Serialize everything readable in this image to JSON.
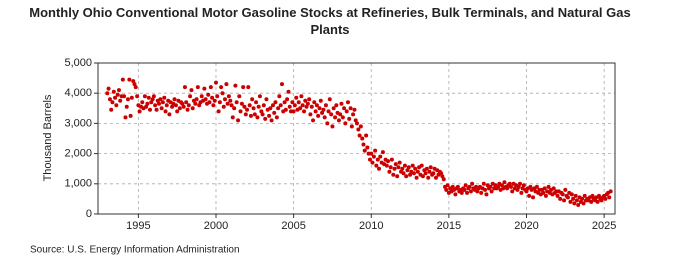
{
  "chart_data": {
    "type": "scatter",
    "title": "Monthly Ohio Conventional Motor Gasoline Stocks at Refineries, Bulk Terminals, and Natural Gas Plants",
    "y_label": "Thousand Barrels",
    "source": "Source: U.S. Energy Information Administration",
    "xlim": [
      1992.4,
      2025.7
    ],
    "xticks": [
      1995,
      2000,
      2005,
      2010,
      2015,
      2020,
      2025
    ],
    "ylim": [
      0,
      5000
    ],
    "yticks": [
      {
        "value": 0,
        "label": "0"
      },
      {
        "value": 1000,
        "label": "1,000"
      },
      {
        "value": 2000,
        "label": "2,000"
      },
      {
        "value": 3000,
        "label": "3,000"
      },
      {
        "value": 4000,
        "label": "4,000"
      },
      {
        "value": 5000,
        "label": "5,000"
      }
    ],
    "grid": true,
    "color": "#cc0000",
    "x": [
      1993.0,
      1993.08,
      1993.17,
      1993.25,
      1993.33,
      1993.42,
      1993.5,
      1993.58,
      1993.67,
      1993.75,
      1993.83,
      1993.92,
      1994.0,
      1994.08,
      1994.17,
      1994.25,
      1994.33,
      1994.42,
      1994.5,
      1994.58,
      1994.67,
      1994.75,
      1994.83,
      1994.92,
      1995.0,
      1995.08,
      1995.17,
      1995.25,
      1995.33,
      1995.42,
      1995.5,
      1995.58,
      1995.67,
      1995.75,
      1995.83,
      1995.92,
      1996.0,
      1996.08,
      1996.17,
      1996.25,
      1996.33,
      1996.42,
      1996.5,
      1996.58,
      1996.67,
      1996.75,
      1996.83,
      1996.92,
      1997.0,
      1997.08,
      1997.17,
      1997.25,
      1997.33,
      1997.42,
      1997.5,
      1997.58,
      1997.67,
      1997.75,
      1997.83,
      1997.92,
      1998.0,
      1998.08,
      1998.17,
      1998.25,
      1998.33,
      1998.42,
      1998.5,
      1998.58,
      1998.67,
      1998.75,
      1998.83,
      1998.92,
      1999.0,
      1999.08,
      1999.17,
      1999.25,
      1999.33,
      1999.42,
      1999.5,
      1999.58,
      1999.67,
      1999.75,
      1999.83,
      1999.92,
      2000.0,
      2000.08,
      2000.17,
      2000.25,
      2000.33,
      2000.42,
      2000.5,
      2000.58,
      2000.67,
      2000.75,
      2000.83,
      2000.92,
      2001.0,
      2001.08,
      2001.17,
      2001.25,
      2001.33,
      2001.42,
      2001.5,
      2001.58,
      2001.67,
      2001.75,
      2001.83,
      2001.92,
      2002.0,
      2002.08,
      2002.17,
      2002.25,
      2002.33,
      2002.42,
      2002.5,
      2002.58,
      2002.67,
      2002.75,
      2002.83,
      2002.92,
      2003.0,
      2003.08,
      2003.17,
      2003.25,
      2003.33,
      2003.42,
      2003.5,
      2003.58,
      2003.67,
      2003.75,
      2003.83,
      2003.92,
      2004.0,
      2004.08,
      2004.17,
      2004.25,
      2004.33,
      2004.42,
      2004.5,
      2004.58,
      2004.67,
      2004.75,
      2004.83,
      2004.92,
      2005.0,
      2005.08,
      2005.17,
      2005.25,
      2005.33,
      2005.42,
      2005.5,
      2005.58,
      2005.67,
      2005.75,
      2005.83,
      2005.92,
      2006.0,
      2006.08,
      2006.17,
      2006.25,
      2006.33,
      2006.42,
      2006.5,
      2006.58,
      2006.67,
      2006.75,
      2006.83,
      2006.92,
      2007.0,
      2007.08,
      2007.17,
      2007.25,
      2007.33,
      2007.42,
      2007.5,
      2007.58,
      2007.67,
      2007.75,
      2007.83,
      2007.92,
      2008.0,
      2008.08,
      2008.17,
      2008.25,
      2008.33,
      2008.42,
      2008.5,
      2008.58,
      2008.67,
      2008.75,
      2008.83,
      2008.92,
      2009.0,
      2009.08,
      2009.17,
      2009.25,
      2009.33,
      2009.42,
      2009.5,
      2009.58,
      2009.67,
      2009.75,
      2009.83,
      2009.92,
      2010.0,
      2010.08,
      2010.17,
      2010.25,
      2010.33,
      2010.42,
      2010.5,
      2010.58,
      2010.67,
      2010.75,
      2010.83,
      2010.92,
      2011.0,
      2011.08,
      2011.17,
      2011.25,
      2011.33,
      2011.42,
      2011.5,
      2011.58,
      2011.67,
      2011.75,
      2011.83,
      2011.92,
      2012.0,
      2012.08,
      2012.17,
      2012.25,
      2012.33,
      2012.42,
      2012.5,
      2012.58,
      2012.67,
      2012.75,
      2012.83,
      2012.92,
      2013.0,
      2013.08,
      2013.17,
      2013.25,
      2013.33,
      2013.42,
      2013.5,
      2013.58,
      2013.67,
      2013.75,
      2013.83,
      2013.92,
      2014.0,
      2014.08,
      2014.17,
      2014.25,
      2014.33,
      2014.42,
      2014.5,
      2014.58,
      2014.67,
      2014.75,
      2014.83,
      2014.92,
      2015.0,
      2015.08,
      2015.17,
      2015.25,
      2015.33,
      2015.42,
      2015.5,
      2015.58,
      2015.67,
      2015.75,
      2015.83,
      2015.92,
      2016.0,
      2016.08,
      2016.17,
      2016.25,
      2016.33,
      2016.42,
      2016.5,
      2016.58,
      2016.67,
      2016.75,
      2016.83,
      2016.92,
      2017.0,
      2017.08,
      2017.17,
      2017.25,
      2017.33,
      2017.42,
      2017.5,
      2017.58,
      2017.67,
      2017.75,
      2017.83,
      2017.92,
      2018.0,
      2018.08,
      2018.17,
      2018.25,
      2018.33,
      2018.42,
      2018.5,
      2018.58,
      2018.67,
      2018.75,
      2018.83,
      2018.92,
      2019.0,
      2019.08,
      2019.17,
      2019.25,
      2019.33,
      2019.42,
      2019.5,
      2019.58,
      2019.67,
      2019.75,
      2019.83,
      2019.92,
      2020.0,
      2020.08,
      2020.17,
      2020.25,
      2020.33,
      2020.42,
      2020.5,
      2020.58,
      2020.67,
      2020.75,
      2020.83,
      2020.92,
      2021.0,
      2021.08,
      2021.17,
      2021.25,
      2021.33,
      2021.42,
      2021.5,
      2021.58,
      2021.67,
      2021.75,
      2021.83,
      2021.92,
      2022.0,
      2022.08,
      2022.17,
      2022.25,
      2022.33,
      2022.42,
      2022.5,
      2022.58,
      2022.67,
      2022.75,
      2022.83,
      2022.92,
      2023.0,
      2023.08,
      2023.17,
      2023.25,
      2023.33,
      2023.42,
      2023.5,
      2023.58,
      2023.67,
      2023.75,
      2023.83,
      2023.92,
      2024.0,
      2024.08,
      2024.17,
      2024.25,
      2024.33,
      2024.42,
      2024.5,
      2024.58,
      2024.67,
      2024.75,
      2024.83,
      2024.92,
      2025.0,
      2025.08,
      2025.17,
      2025.25,
      2025.33,
      2025.42
    ],
    "values": [
      4000,
      4150,
      3800,
      3450,
      3700,
      4050,
      3850,
      3600,
      3950,
      4100,
      3750,
      3900,
      4450,
      3900,
      3200,
      3550,
      3800,
      4450,
      3250,
      3850,
      4400,
      4300,
      4200,
      3900,
      3600,
      3400,
      3550,
      3700,
      3500,
      3900,
      3550,
      3650,
      3850,
      3450,
      3700,
      3800,
      3900,
      3600,
      3450,
      3750,
      3650,
      3800,
      3500,
      3700,
      3850,
      3400,
      3600,
      3750,
      3300,
      3700,
      3550,
      3650,
      3800,
      3600,
      3400,
      3750,
      3500,
      3700,
      3650,
      3550,
      4200,
      3700,
      3450,
      3600,
      3900,
      4100,
      3500,
      3750,
      3650,
      3800,
      4200,
      3600,
      3700,
      3900,
      3750,
      4150,
      3800,
      3650,
      3950,
      3700,
      4200,
      3850,
      3600,
      3750,
      4350,
      3900,
      3400,
      3700,
      4200,
      4000,
      3550,
      3800,
      4300,
      3650,
      3900,
      3750,
      3600,
      3200,
      3500,
      4250,
      3700,
      3100,
      3900,
      3400,
      3650,
      4200,
      3550,
      3300,
      3450,
      4200,
      3600,
      3250,
      3800,
      3500,
      3300,
      3700,
      3200,
      3550,
      3900,
      3400,
      3300,
      3600,
      3150,
      3800,
      3450,
      3250,
      3500,
      3100,
      3600,
      3350,
      3700,
      3200,
      3500,
      3900,
      3600,
      4300,
      3400,
      3700,
      3450,
      3800,
      4050,
      3550,
      3400,
      3700,
      3400,
      3600,
      3850,
      3450,
      3700,
      3500,
      3900,
      3600,
      3400,
      3750,
      3550,
      3650,
      3800,
      3300,
      3550,
      3100,
      3700,
      3400,
      3600,
      3250,
      3500,
      3750,
      3350,
      3450,
      3200,
      3600,
      3000,
      3400,
      3800,
      3300,
      2900,
      3500,
      3200,
      3600,
      3350,
      3100,
      3300,
      3650,
      3200,
      3500,
      3000,
      3400,
      3700,
      3150,
      3500,
      2900,
      3300,
      3450,
      3100,
      3000,
      2800,
      2600,
      2900,
      2500,
      2300,
      2100,
      2600,
      2200,
      2000,
      1800,
      2000,
      1700,
      1900,
      2100,
      1600,
      1800,
      1500,
      1900,
      1700,
      2050,
      1650,
      1800,
      1600,
      1750,
      1400,
      1550,
      1800,
      1300,
      1500,
      1650,
      1250,
      1550,
      1700,
      1400,
      1500,
      1350,
      1600,
      1250,
      1450,
      1550,
      1300,
      1400,
      1600,
      1350,
      1500,
      1200,
      1400,
      1550,
      1300,
      1600,
      1250,
      1450,
      1350,
      1500,
      1200,
      1400,
      1550,
      1300,
      1350,
      1500,
      1200,
      1450,
      1300,
      1400,
      1350,
      1250,
      1150,
      900,
      800,
      950,
      700,
      850,
      750,
      900,
      800,
      650,
      850,
      900,
      750,
      800,
      700,
      850,
      800,
      950,
      700,
      850,
      900,
      750,
      1000,
      850,
      800,
      900,
      750,
      850,
      900,
      700,
      850,
      1000,
      800,
      650,
      950,
      850,
      900,
      750,
      1000,
      850,
      950,
      850,
      900,
      1000,
      800,
      950,
      850,
      1050,
      900,
      850,
      950,
      1000,
      900,
      750,
      1000,
      850,
      950,
      800,
      900,
      1000,
      700,
      850,
      950,
      800,
      750,
      850,
      600,
      900,
      800,
      550,
      850,
      750,
      900,
      700,
      800,
      650,
      800,
      700,
      850,
      600,
      750,
      900,
      700,
      800,
      650,
      850,
      700,
      750,
      600,
      750,
      500,
      700,
      650,
      450,
      800,
      600,
      550,
      700,
      400,
      650,
      500,
      350,
      600,
      450,
      300,
      550,
      400,
      500,
      350,
      600,
      450,
      500,
      450,
      550,
      400,
      600,
      500,
      450,
      550,
      400,
      600,
      500,
      450,
      550,
      600,
      500,
      650,
      700,
      550,
      750
    ]
  }
}
